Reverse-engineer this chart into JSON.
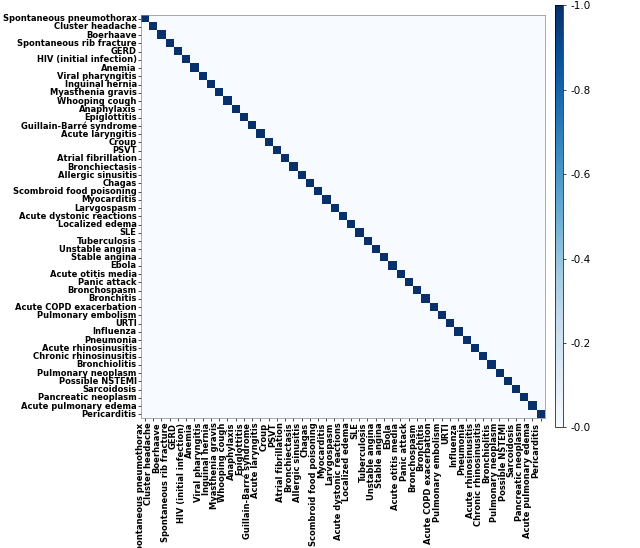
{
  "labels": [
    "Spontaneous pneumothorax",
    "Cluster headache",
    "Boerhaave",
    "Spontaneous rib fracture",
    "GERD",
    "HIV (initial infection)",
    "Anemia",
    "Viral pharyngitis",
    "Inguinal hernia",
    "Myasthenia gravis",
    "Whooping cough",
    "Anaphylaxis",
    "Epiglottitis",
    "Guillain-Barré syndrome",
    "Acute laryngitis",
    "Croup",
    "PSVT",
    "Atrial fibrillation",
    "Bronchiectasis",
    "Allergic sinusitis",
    "Chagas",
    "Scombroid food poisoning",
    "Myocarditis",
    "Larvgospasm",
    "Acute dystonic reactions",
    "Localized edema",
    "SLE",
    "Tuberculosis",
    "Unstable angina",
    "Stable angina",
    "Ebola",
    "Acute otitis media",
    "Panic attack",
    "Bronchospasm",
    "Bronchitis",
    "Acute COPD exacerbation",
    "Pulmonary embolism",
    "URTI",
    "Influenza",
    "Pneumonia",
    "Acute rhinosinusitis",
    "Chronic rhinosinusitis",
    "Bronchiolitis",
    "Pulmonary neoplasm",
    "Possible NSTEMI",
    "Sarcoidosis",
    "Pancreatic neoplasm",
    "Acute pulmonary edema",
    "Pericarditis"
  ],
  "cmap": "Blues",
  "vmin": 0.0,
  "vmax": 1.0,
  "diagonal_value": 1.0,
  "colorbar_ticks": [
    1.0,
    0.8,
    0.6,
    0.4,
    0.2,
    0.0
  ],
  "colorbar_tick_labels": [
    "-1.0",
    "-0.8",
    "-0.6",
    "-0.4",
    "-0.2",
    "-0.0"
  ],
  "tick_fontsize": 6.0,
  "colorbar_fontsize": 7.5,
  "bg_color": "#ffffff",
  "figsize": [
    6.4,
    5.48
  ],
  "dpi": 100
}
